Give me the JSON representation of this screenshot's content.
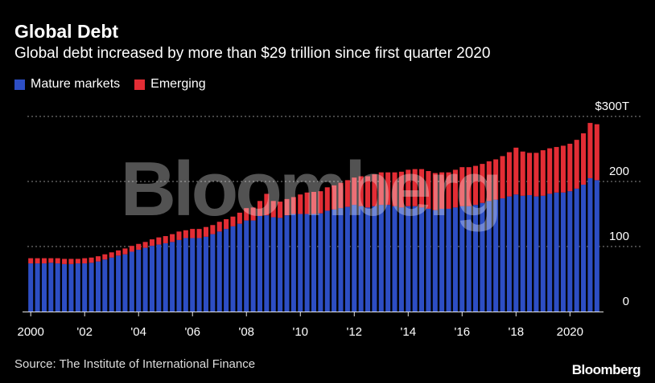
{
  "header": {
    "title": "Global Debt",
    "subtitle": "Global debt increased by more than $29 trillion since first quarter 2020"
  },
  "legend": [
    {
      "label": "Mature markets",
      "color": "#2d4ec4"
    },
    {
      "label": "Emerging",
      "color": "#e32d35"
    }
  ],
  "footer": {
    "source": "Source: The Institute of International Finance",
    "brand": "Bloomberg"
  },
  "watermark": "Bloomberg",
  "chart_data": {
    "type": "bar",
    "stacked": true,
    "title": "Global Debt",
    "xlabel": "",
    "ylabel": "",
    "ylim": [
      0,
      300
    ],
    "y_ticks": [
      {
        "value": 0,
        "label": "0"
      },
      {
        "value": 100,
        "label": "100"
      },
      {
        "value": 200,
        "label": "200"
      },
      {
        "value": 300,
        "label": "$300T"
      }
    ],
    "x_tick_labels": [
      {
        "quarter_index": 0,
        "label": "2000"
      },
      {
        "quarter_index": 8,
        "label": "'02"
      },
      {
        "quarter_index": 16,
        "label": "'04"
      },
      {
        "quarter_index": 24,
        "label": "'06"
      },
      {
        "quarter_index": 32,
        "label": "'08"
      },
      {
        "quarter_index": 40,
        "label": "'10"
      },
      {
        "quarter_index": 48,
        "label": "'12"
      },
      {
        "quarter_index": 56,
        "label": "'14"
      },
      {
        "quarter_index": 64,
        "label": "'16"
      },
      {
        "quarter_index": 72,
        "label": "'18"
      },
      {
        "quarter_index": 80,
        "label": "2020"
      }
    ],
    "series": [
      {
        "name": "Mature markets",
        "color": "#2d4ec4",
        "values": [
          74,
          74,
          74,
          75,
          74,
          73,
          73,
          74,
          74,
          75,
          77,
          80,
          83,
          86,
          88,
          92,
          95,
          98,
          101,
          103,
          105,
          107,
          110,
          113,
          113,
          113,
          115,
          119,
          123,
          127,
          131,
          135,
          140,
          140,
          147,
          148,
          145,
          144,
          148,
          150,
          150,
          150,
          150,
          151,
          155,
          157,
          159,
          161,
          164,
          162,
          160,
          162,
          164,
          164,
          162,
          160,
          162,
          162,
          160,
          158,
          156,
          158,
          158,
          160,
          162,
          162,
          164,
          167,
          170,
          172,
          174,
          177,
          180,
          178,
          179,
          177,
          178,
          181,
          183,
          183,
          185,
          189,
          195,
          205,
          202
        ]
      },
      {
        "name": "Emerging",
        "color": "#e32d35",
        "values": [
          8,
          8,
          8,
          7,
          8,
          8,
          8,
          7,
          8,
          8,
          8,
          8,
          8,
          8,
          9,
          9,
          9,
          9,
          10,
          11,
          11,
          12,
          13,
          12,
          14,
          14,
          15,
          14,
          15,
          15,
          15,
          17,
          19,
          20,
          23,
          33,
          25,
          25,
          25,
          26,
          30,
          33,
          34,
          34,
          36,
          37,
          39,
          41,
          42,
          46,
          48,
          49,
          50,
          50,
          52,
          55,
          56,
          57,
          59,
          58,
          57,
          56,
          56,
          58,
          60,
          60,
          60,
          60,
          61,
          62,
          65,
          68,
          72,
          68,
          65,
          67,
          70,
          70,
          70,
          72,
          73,
          75,
          79,
          85,
          86
        ]
      }
    ]
  }
}
